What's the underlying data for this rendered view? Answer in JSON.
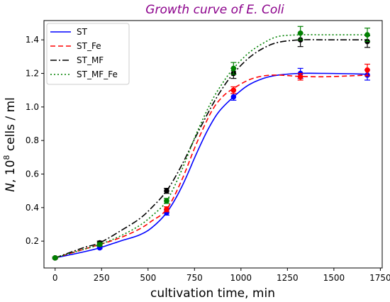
{
  "chart_data": {
    "type": "line",
    "title": "Growth curve of E. Coli",
    "title_color": "#8b008b",
    "xlabel": "cultivation time, min",
    "ylabel": {
      "prefix": "N",
      "middle": ", 10",
      "superscript": "8",
      "suffix": " cells / ml"
    },
    "xlim": [
      -60,
      1760
    ],
    "ylim": [
      0.04,
      1.515
    ],
    "xticks": [
      0,
      250,
      500,
      750,
      1000,
      1250,
      1500,
      1750
    ],
    "xtick_labels": [
      "0",
      "250",
      "500",
      "750",
      "1000",
      "1250",
      "1500",
      "1750"
    ],
    "yticks": [
      0.2,
      0.4,
      0.6,
      0.8,
      1.0,
      1.2,
      1.4
    ],
    "ytick_labels": [
      "0.2",
      "0.4",
      "0.6",
      "0.8",
      "1.0",
      "1.2",
      "1.4"
    ],
    "grid": false,
    "legend_position": "top-left",
    "x": [
      0,
      240,
      600,
      960,
      1320,
      1680
    ],
    "series": [
      {
        "name": "ST",
        "color": "#0000ff",
        "line_style": "solid",
        "marker": "circle",
        "values": [
          0.1,
          0.16,
          0.37,
          1.06,
          1.2,
          1.19
        ],
        "errors": [
          0.005,
          0.005,
          0.015,
          0.02,
          0.03,
          0.03
        ],
        "curve_x": [
          0,
          150,
          240,
          350,
          450,
          520,
          600,
          680,
          760,
          820,
          880,
          960,
          1040,
          1120,
          1200,
          1320,
          1450,
          1580,
          1680
        ],
        "curve_y": [
          0.1,
          0.135,
          0.16,
          0.2,
          0.235,
          0.28,
          0.37,
          0.52,
          0.72,
          0.86,
          0.97,
          1.06,
          1.13,
          1.17,
          1.19,
          1.2,
          1.2,
          1.198,
          1.195
        ]
      },
      {
        "name": "ST_Fe",
        "color": "#ff0000",
        "line_style": "dashed",
        "marker": "circle",
        "values": [
          0.1,
          0.18,
          0.39,
          1.1,
          1.18,
          1.22
        ],
        "errors": [
          0.005,
          0.01,
          0.015,
          0.02,
          0.02,
          0.035
        ],
        "curve_x": [
          0,
          150,
          240,
          350,
          450,
          520,
          600,
          680,
          760,
          840,
          900,
          960,
          1040,
          1120,
          1200,
          1320,
          1450,
          1580,
          1680
        ],
        "curve_y": [
          0.1,
          0.15,
          0.18,
          0.22,
          0.27,
          0.32,
          0.39,
          0.56,
          0.78,
          0.97,
          1.06,
          1.11,
          1.16,
          1.185,
          1.19,
          1.182,
          1.18,
          1.185,
          1.19
        ]
      },
      {
        "name": "ST_MF",
        "color": "#000000",
        "line_style": "dashdot",
        "marker": "circle",
        "values": [
          0.1,
          0.19,
          0.5,
          1.2,
          1.4,
          1.39
        ],
        "errors": [
          0.005,
          0.01,
          0.015,
          0.03,
          0.04,
          0.035
        ],
        "curve_x": [
          0,
          150,
          240,
          350,
          450,
          520,
          600,
          680,
          760,
          840,
          900,
          960,
          1040,
          1120,
          1200,
          1320,
          1450,
          1580,
          1680
        ],
        "curve_y": [
          0.1,
          0.16,
          0.19,
          0.26,
          0.33,
          0.4,
          0.5,
          0.65,
          0.83,
          1.0,
          1.11,
          1.2,
          1.29,
          1.35,
          1.385,
          1.4,
          1.4,
          1.4,
          1.4
        ]
      },
      {
        "name": "ST_MF_Fe",
        "color": "#008000",
        "line_style": "dotted",
        "marker": "circle",
        "values": [
          0.1,
          0.18,
          0.44,
          1.23,
          1.44,
          1.43
        ],
        "errors": [
          0.005,
          0.01,
          0.015,
          0.035,
          0.04,
          0.04
        ],
        "curve_x": [
          0,
          150,
          240,
          350,
          450,
          520,
          600,
          680,
          760,
          840,
          900,
          960,
          1040,
          1120,
          1200,
          1320,
          1450,
          1580,
          1680
        ],
        "curve_y": [
          0.1,
          0.15,
          0.18,
          0.23,
          0.29,
          0.35,
          0.44,
          0.62,
          0.84,
          1.03,
          1.14,
          1.23,
          1.32,
          1.38,
          1.42,
          1.43,
          1.43,
          1.43,
          1.43
        ]
      }
    ]
  }
}
